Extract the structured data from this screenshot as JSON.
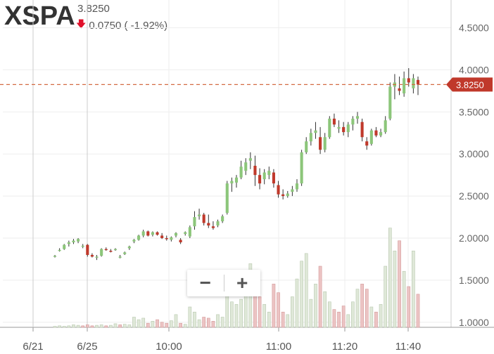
{
  "header": {
    "ticker": "XSPA",
    "last_price": "3.8250",
    "change": "0.0750 ( -1.92%)",
    "direction_icon": "down-arrow-icon"
  },
  "zoom_controls": {
    "zoom_out_label": "−",
    "zoom_in_label": "+"
  },
  "price_tag": "3.8250",
  "colors": {
    "up": "#8cc67a",
    "down": "#c0392b",
    "vol_up": "#dfe8d8",
    "vol_down": "#ecc4c4",
    "price_line": "#d46a43"
  },
  "chart_data": {
    "type": "candlestick",
    "y_ticks": [
      "4.5000",
      "4.0000",
      "3.5000",
      "3.0000",
      "2.5000",
      "2.0000",
      "1.5000",
      "1.0000"
    ],
    "ylim": [
      0.94,
      4.83
    ],
    "x_ticks": [
      "6/21",
      "6/25",
      "10:00",
      "11:00",
      "11:20",
      "11:40"
    ],
    "current_price": 3.825,
    "ohlc": [
      [
        1.78,
        1.8,
        1.77,
        1.79
      ],
      [
        1.86,
        1.88,
        1.84,
        1.86
      ],
      [
        1.87,
        1.93,
        1.86,
        1.92
      ],
      [
        1.93,
        1.97,
        1.9,
        1.95
      ],
      [
        1.95,
        1.99,
        1.93,
        1.97
      ],
      [
        1.96,
        2.0,
        1.94,
        1.99
      ],
      [
        1.9,
        1.93,
        1.88,
        1.91
      ],
      [
        1.92,
        1.93,
        1.78,
        1.8
      ],
      [
        1.8,
        1.82,
        1.77,
        1.78
      ],
      [
        1.77,
        1.8,
        1.74,
        1.78
      ],
      [
        1.79,
        1.88,
        1.78,
        1.87
      ],
      [
        1.87,
        1.89,
        1.85,
        1.86
      ],
      [
        1.85,
        1.87,
        1.83,
        1.84
      ],
      [
        1.86,
        1.88,
        1.85,
        1.87
      ],
      [
        1.78,
        1.8,
        1.76,
        1.78
      ],
      [
        1.81,
        1.84,
        1.8,
        1.83
      ],
      [
        1.88,
        1.91,
        1.86,
        1.9
      ],
      [
        1.96,
        1.99,
        1.94,
        1.98
      ],
      [
        1.98,
        2.04,
        1.97,
        2.03
      ],
      [
        2.03,
        2.1,
        2.01,
        2.08
      ],
      [
        2.08,
        2.09,
        2.02,
        2.03
      ],
      [
        2.04,
        2.08,
        2.02,
        2.07
      ],
      [
        2.07,
        2.08,
        2.03,
        2.04
      ],
      [
        2.03,
        2.06,
        1.99,
        2.0
      ],
      [
        2.0,
        2.03,
        1.97,
        1.99
      ],
      [
        1.98,
        2.02,
        1.96,
        2.01
      ],
      [
        2.03,
        2.07,
        2.01,
        2.06
      ],
      [
        1.98,
        2.0,
        1.93,
        1.95
      ],
      [
        2.05,
        2.08,
        2.03,
        2.07
      ],
      [
        2.02,
        2.15,
        2.0,
        2.13
      ],
      [
        2.14,
        2.32,
        2.1,
        2.25
      ],
      [
        2.26,
        2.35,
        2.22,
        2.28
      ],
      [
        2.28,
        2.3,
        2.15,
        2.18
      ],
      [
        2.18,
        2.28,
        2.12,
        2.15
      ],
      [
        2.14,
        2.2,
        2.1,
        2.12
      ],
      [
        2.15,
        2.22,
        2.13,
        2.2
      ],
      [
        2.2,
        2.28,
        2.18,
        2.26
      ],
      [
        2.3,
        2.68,
        2.28,
        2.65
      ],
      [
        2.65,
        2.72,
        2.55,
        2.68
      ],
      [
        2.66,
        2.75,
        2.6,
        2.72
      ],
      [
        2.72,
        2.92,
        2.7,
        2.85
      ],
      [
        2.8,
        2.95,
        2.75,
        2.9
      ],
      [
        2.92,
        3.02,
        2.82,
        2.95
      ],
      [
        2.86,
        2.98,
        2.62,
        2.75
      ],
      [
        2.75,
        2.83,
        2.58,
        2.65
      ],
      [
        2.7,
        2.82,
        2.64,
        2.78
      ],
      [
        2.75,
        2.85,
        2.7,
        2.8
      ],
      [
        2.78,
        2.82,
        2.6,
        2.65
      ],
      [
        2.63,
        2.68,
        2.48,
        2.52
      ],
      [
        2.52,
        2.58,
        2.46,
        2.5
      ],
      [
        2.5,
        2.56,
        2.48,
        2.53
      ],
      [
        2.55,
        2.62,
        2.5,
        2.58
      ],
      [
        2.58,
        2.7,
        2.55,
        2.65
      ],
      [
        2.65,
        3.05,
        2.62,
        3.02
      ],
      [
        3.02,
        3.2,
        3.0,
        3.15
      ],
      [
        3.15,
        3.3,
        3.1,
        3.25
      ],
      [
        3.25,
        3.38,
        3.18,
        3.28
      ],
      [
        3.2,
        3.32,
        3.0,
        3.05
      ],
      [
        3.05,
        3.25,
        3.02,
        3.2
      ],
      [
        3.2,
        3.45,
        3.18,
        3.42
      ],
      [
        3.42,
        3.48,
        3.32,
        3.35
      ],
      [
        3.3,
        3.4,
        3.25,
        3.32
      ],
      [
        3.32,
        3.38,
        3.22,
        3.26
      ],
      [
        3.26,
        3.38,
        3.2,
        3.35
      ],
      [
        3.35,
        3.45,
        3.28,
        3.42
      ],
      [
        3.42,
        3.5,
        3.36,
        3.45
      ],
      [
        3.38,
        3.42,
        3.15,
        3.2
      ],
      [
        3.15,
        3.2,
        3.05,
        3.1
      ],
      [
        3.12,
        3.3,
        3.1,
        3.28
      ],
      [
        3.28,
        3.32,
        3.2,
        3.22
      ],
      [
        3.22,
        3.3,
        3.2,
        3.26
      ],
      [
        3.26,
        3.45,
        3.24,
        3.4
      ],
      [
        3.42,
        3.85,
        3.4,
        3.8
      ],
      [
        3.8,
        3.95,
        3.65,
        3.85
      ],
      [
        3.78,
        3.92,
        3.7,
        3.75
      ],
      [
        3.72,
        3.98,
        3.68,
        3.9
      ],
      [
        3.9,
        4.02,
        3.8,
        3.85
      ],
      [
        3.78,
        3.95,
        3.72,
        3.9
      ],
      [
        3.88,
        3.92,
        3.7,
        3.825
      ]
    ],
    "volume": [
      0.02,
      0.03,
      0.02,
      0.03,
      0.05,
      0.04,
      0.03,
      0.05,
      0.03,
      0.04,
      0.05,
      0.03,
      0.04,
      0.07,
      0.05,
      0.06,
      0.05,
      0.2,
      0.15,
      0.18,
      0.08,
      0.12,
      0.15,
      0.1,
      0.08,
      0.13,
      0.25,
      0.08,
      0.06,
      0.4,
      0.3,
      0.15,
      0.2,
      0.18,
      0.12,
      0.25,
      0.2,
      0.62,
      0.5,
      0.45,
      0.55,
      0.9,
      1.25,
      1.0,
      0.6,
      0.45,
      0.3,
      0.85,
      0.68,
      0.3,
      0.25,
      0.6,
      0.95,
      1.3,
      1.45,
      0.55,
      0.85,
      1.2,
      0.7,
      0.5,
      0.35,
      0.3,
      0.42,
      0.25,
      0.5,
      0.75,
      0.85,
      0.75,
      0.4,
      0.3,
      0.45,
      1.2,
      1.95,
      1.5,
      1.7,
      1.1,
      0.8,
      1.5,
      0.65
    ],
    "volume_up": [
      true,
      true,
      true,
      true,
      true,
      true,
      false,
      false,
      false,
      true,
      true,
      false,
      true,
      true,
      false,
      true,
      true,
      true,
      true,
      true,
      false,
      true,
      false,
      false,
      false,
      true,
      true,
      false,
      true,
      true,
      true,
      true,
      false,
      false,
      false,
      true,
      true,
      true,
      true,
      true,
      true,
      true,
      true,
      false,
      false,
      true,
      true,
      false,
      false,
      false,
      true,
      true,
      true,
      true,
      true,
      true,
      true,
      false,
      true,
      true,
      false,
      false,
      false,
      true,
      true,
      true,
      false,
      false,
      true,
      false,
      true,
      true,
      true,
      true,
      false,
      true,
      false,
      true,
      false
    ]
  }
}
